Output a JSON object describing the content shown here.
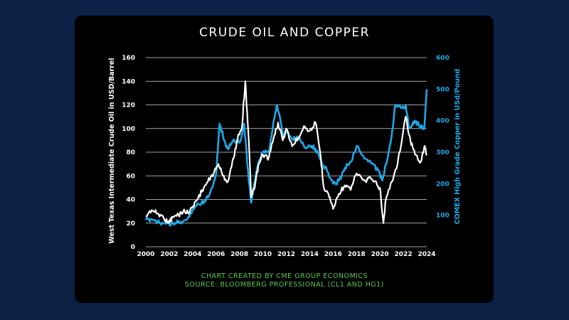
{
  "chart_data": {
    "type": "line",
    "title": "CRUDE OIL AND COPPER",
    "footer": [
      "CHART CREATED BY CME GROUP ECONOMICS",
      "SOURCE: BLOOMBERG PROFESSIONAL (CL1 AND HG1)"
    ],
    "xlim": [
      2000,
      2024
    ],
    "x_ticks": [
      "2000",
      "2002",
      "2004",
      "2006",
      "2008",
      "2010",
      "2012",
      "2014",
      "2016",
      "2018",
      "2020",
      "2022",
      "2024"
    ],
    "left_axis": {
      "label": "West Texas Intermediate Crude Oil in USD/Barrel",
      "ylim": [
        0,
        160
      ],
      "ticks": [
        "0",
        "20",
        "40",
        "60",
        "80",
        "100",
        "120",
        "140",
        "160"
      ]
    },
    "right_axis": {
      "label": "COMEX High Grade Copper in USd/Pound",
      "ylim": [
        0,
        600
      ],
      "ticks": [
        "100",
        "200",
        "300",
        "400",
        "500",
        "600"
      ]
    },
    "grid": true,
    "series": [
      {
        "axis": "left",
        "color": "#ffffff",
        "x": [
          2000.0,
          2000.5,
          2001.0,
          2001.5,
          2001.9,
          2002.3,
          2002.8,
          2003.2,
          2003.6,
          2004.0,
          2004.5,
          2004.8,
          2005.3,
          2005.8,
          2006.2,
          2006.6,
          2007.0,
          2007.5,
          2007.9,
          2008.2,
          2008.5,
          2008.8,
          2009.0,
          2009.3,
          2009.6,
          2010.0,
          2010.5,
          2011.0,
          2011.3,
          2011.7,
          2012.0,
          2012.5,
          2013.0,
          2013.5,
          2014.0,
          2014.5,
          2014.9,
          2015.2,
          2015.6,
          2016.0,
          2016.5,
          2017.0,
          2017.5,
          2018.0,
          2018.8,
          2019.0,
          2019.5,
          2020.0,
          2020.3,
          2020.5,
          2021.0,
          2021.5,
          2022.2,
          2022.6,
          2023.0,
          2023.5,
          2023.8,
          2024.0
        ],
        "y": [
          26,
          31,
          28,
          25,
          20,
          25,
          27,
          30,
          29,
          34,
          42,
          48,
          55,
          62,
          70,
          60,
          55,
          75,
          95,
          100,
          140,
          90,
          42,
          50,
          68,
          78,
          75,
          95,
          105,
          90,
          100,
          85,
          92,
          102,
          98,
          105,
          80,
          50,
          45,
          32,
          45,
          52,
          48,
          62,
          55,
          58,
          55,
          50,
          20,
          40,
          55,
          70,
          110,
          90,
          78,
          72,
          85,
          78
        ]
      },
      {
        "axis": "right",
        "color": "#1ea7e6",
        "x": [
          2000.0,
          2000.5,
          2001.0,
          2001.5,
          2002.0,
          2002.5,
          2003.0,
          2003.5,
          2004.0,
          2004.5,
          2005.0,
          2005.5,
          2006.0,
          2006.3,
          2006.6,
          2007.0,
          2007.5,
          2008.0,
          2008.4,
          2008.8,
          2009.0,
          2009.5,
          2010.0,
          2010.5,
          2011.0,
          2011.2,
          2011.8,
          2012.0,
          2012.5,
          2013.0,
          2013.5,
          2014.0,
          2014.5,
          2015.0,
          2015.5,
          2016.0,
          2016.5,
          2017.0,
          2017.5,
          2018.0,
          2018.5,
          2019.0,
          2019.5,
          2020.0,
          2020.2,
          2020.5,
          2021.0,
          2021.3,
          2021.8,
          2022.2,
          2022.5,
          2023.0,
          2023.5,
          2023.8,
          2024.0
        ],
        "y": [
          85,
          88,
          80,
          75,
          72,
          75,
          78,
          85,
          120,
          135,
          145,
          170,
          230,
          390,
          350,
          310,
          340,
          330,
          390,
          210,
          140,
          250,
          300,
          300,
          410,
          450,
          350,
          370,
          340,
          350,
          320,
          320,
          310,
          270,
          240,
          200,
          210,
          250,
          270,
          320,
          290,
          270,
          260,
          230,
          210,
          260,
          350,
          450,
          440,
          450,
          380,
          400,
          380,
          380,
          500
        ]
      }
    ]
  }
}
